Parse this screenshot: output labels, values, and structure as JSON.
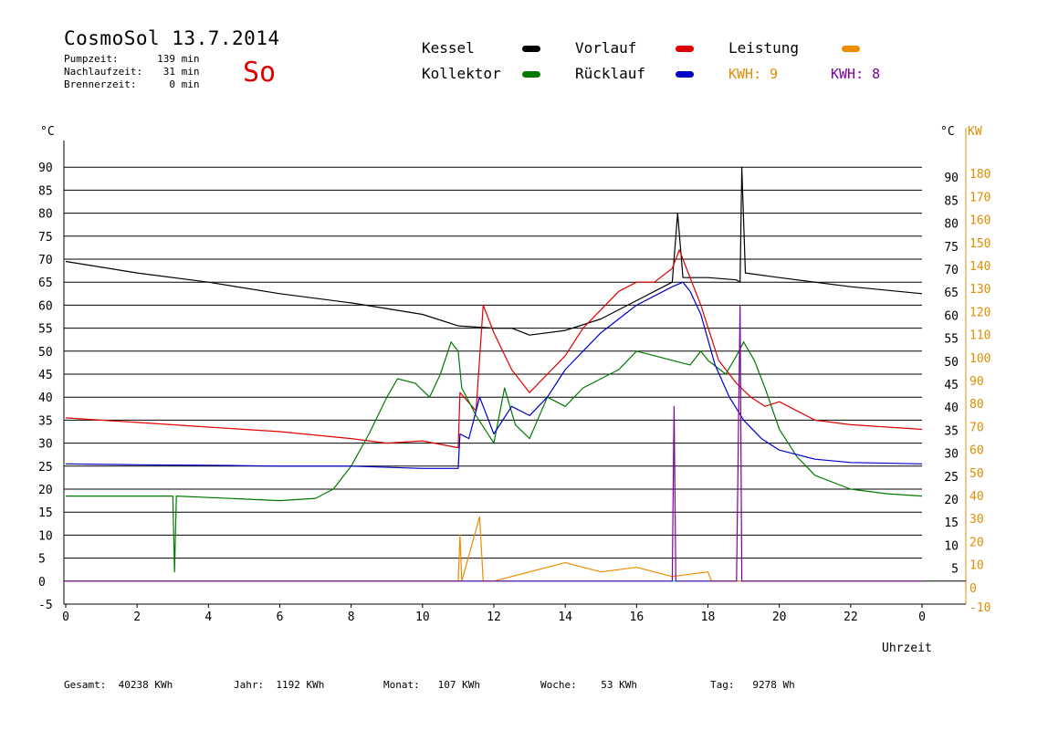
{
  "header": {
    "title": "CosmoSol 13.7.2014",
    "weekday": "So",
    "stats": [
      {
        "label": "Pumpzeit:",
        "value": "139",
        "unit": "min"
      },
      {
        "label": "Nachlaufzeit:",
        "value": "31",
        "unit": "min"
      },
      {
        "label": "Brennerzeit:",
        "value": "0",
        "unit": "min"
      }
    ]
  },
  "legend": {
    "kessel": "Kessel",
    "vorlauf": "Vorlauf",
    "leistung": "Leistung",
    "kollektor": "Kollektor",
    "ruecklauf": "Rücklauf",
    "kwh1": "KWH: 9",
    "kwh2": "KWH: 8"
  },
  "colors": {
    "kessel": "#000000",
    "vorlauf": "#e00000",
    "leistung": "#f08c00",
    "kollektor": "#007a00",
    "ruecklauf": "#0000c8",
    "kwh2": "#8000a0",
    "zero_line": "#00e0e0",
    "axis_right": "#e08c00"
  },
  "footer": [
    {
      "label": "Gesamt:",
      "value": "40238 KWh"
    },
    {
      "label": "Jahr:",
      "value": "1192 KWh"
    },
    {
      "label": "Monat:",
      "value": "107 KWh"
    },
    {
      "label": "Woche:",
      "value": "53 KWh"
    },
    {
      "label": "Tag:",
      "value": "9278 Wh"
    }
  ],
  "chart_data": {
    "type": "line",
    "xlabel": "Uhrzeit",
    "ylabel_left": "°C",
    "ylabel_right": "KW",
    "xlim": [
      0,
      24
    ],
    "ylim": [
      -5,
      95
    ],
    "ylim_right": [
      -10,
      190
    ],
    "x_ticks": [
      "0",
      "2",
      "4",
      "6",
      "8",
      "10",
      "12",
      "14",
      "16",
      "18",
      "20",
      "22",
      "0"
    ],
    "y_ticks_left": [
      "-5",
      "0",
      "5",
      "10",
      "15",
      "20",
      "25",
      "30",
      "35",
      "40",
      "45",
      "50",
      "55",
      "60",
      "65",
      "70",
      "75",
      "80",
      "85",
      "90"
    ],
    "y_ticks_right_temp": [
      "5",
      "10",
      "15",
      "20",
      "25",
      "30",
      "35",
      "40",
      "45",
      "50",
      "55",
      "60",
      "65",
      "70",
      "75",
      "80",
      "85",
      "90"
    ],
    "y_ticks_right_kw": [
      "-10",
      "0",
      "10",
      "20",
      "30",
      "40",
      "50",
      "60",
      "70",
      "80",
      "90",
      "100",
      "110",
      "120",
      "130",
      "140",
      "150",
      "160",
      "170",
      "180"
    ],
    "grid": true,
    "legend_position": "top",
    "series": [
      {
        "name": "Kessel",
        "points": [
          [
            0,
            69.5
          ],
          [
            2,
            67
          ],
          [
            4,
            65
          ],
          [
            6,
            62.5
          ],
          [
            8,
            60.5
          ],
          [
            10,
            58
          ],
          [
            11,
            55.5
          ],
          [
            12,
            55
          ],
          [
            12.5,
            55
          ],
          [
            13,
            53.5
          ],
          [
            14,
            54.5
          ],
          [
            15,
            57
          ],
          [
            16,
            61
          ],
          [
            17,
            65
          ],
          [
            17.15,
            80
          ],
          [
            17.3,
            66
          ],
          [
            18,
            66
          ],
          [
            18.8,
            65.5
          ],
          [
            18.9,
            65
          ],
          [
            18.95,
            90
          ],
          [
            19.05,
            67
          ],
          [
            20,
            66
          ],
          [
            22,
            64
          ],
          [
            24,
            62.5
          ]
        ]
      },
      {
        "name": "Vorlauf",
        "points": [
          [
            0,
            35.5
          ],
          [
            2,
            34.5
          ],
          [
            4,
            33.5
          ],
          [
            6,
            32.5
          ],
          [
            8,
            31
          ],
          [
            9,
            30
          ],
          [
            10,
            30.5
          ],
          [
            11,
            29
          ],
          [
            11.05,
            41
          ],
          [
            11.5,
            37
          ],
          [
            11.7,
            60
          ],
          [
            12,
            54
          ],
          [
            12.5,
            46
          ],
          [
            13,
            41
          ],
          [
            13.5,
            45
          ],
          [
            14,
            49
          ],
          [
            14.5,
            55
          ],
          [
            15,
            59
          ],
          [
            15.5,
            63
          ],
          [
            16,
            65
          ],
          [
            16.5,
            65
          ],
          [
            17,
            68
          ],
          [
            17.2,
            72
          ],
          [
            17.4,
            68
          ],
          [
            17.8,
            60
          ],
          [
            18.3,
            48
          ],
          [
            18.8,
            43
          ],
          [
            19.2,
            40
          ],
          [
            19.6,
            38
          ],
          [
            20,
            39
          ],
          [
            20.5,
            37
          ],
          [
            21,
            35
          ],
          [
            22,
            34
          ],
          [
            24,
            33
          ]
        ]
      },
      {
        "name": "Kollektor",
        "points": [
          [
            0,
            18.5
          ],
          [
            3,
            18.5
          ],
          [
            3.05,
            2
          ],
          [
            3.1,
            18.5
          ],
          [
            6,
            17.5
          ],
          [
            7,
            18
          ],
          [
            7.5,
            20
          ],
          [
            8,
            25
          ],
          [
            8.5,
            32
          ],
          [
            9,
            40
          ],
          [
            9.3,
            44
          ],
          [
            9.8,
            43
          ],
          [
            10.2,
            40
          ],
          [
            10.5,
            45
          ],
          [
            10.8,
            52
          ],
          [
            11,
            50
          ],
          [
            11.1,
            42
          ],
          [
            11.5,
            36
          ],
          [
            12,
            30
          ],
          [
            12.3,
            42
          ],
          [
            12.6,
            34
          ],
          [
            13,
            31
          ],
          [
            13.5,
            40
          ],
          [
            14,
            38
          ],
          [
            14.5,
            42
          ],
          [
            15,
            44
          ],
          [
            15.5,
            46
          ],
          [
            16,
            50
          ],
          [
            16.5,
            49
          ],
          [
            17,
            48
          ],
          [
            17.5,
            47
          ],
          [
            17.8,
            50
          ],
          [
            18,
            48
          ],
          [
            18.5,
            45
          ],
          [
            18.8,
            49
          ],
          [
            19,
            52
          ],
          [
            19.3,
            48
          ],
          [
            19.6,
            42
          ],
          [
            20,
            33
          ],
          [
            20.5,
            27
          ],
          [
            21,
            23
          ],
          [
            22,
            20
          ],
          [
            23,
            19
          ],
          [
            24,
            18.5
          ]
        ]
      },
      {
        "name": "Rücklauf",
        "points": [
          [
            0,
            25.5
          ],
          [
            2,
            25.3
          ],
          [
            4,
            25.2
          ],
          [
            6,
            25
          ],
          [
            8,
            25
          ],
          [
            10,
            24.5
          ],
          [
            11,
            24.5
          ],
          [
            11.05,
            32
          ],
          [
            11.3,
            31
          ],
          [
            11.6,
            40
          ],
          [
            12,
            32
          ],
          [
            12.5,
            38
          ],
          [
            13,
            36
          ],
          [
            13.5,
            40
          ],
          [
            14,
            46
          ],
          [
            14.5,
            50
          ],
          [
            15,
            54
          ],
          [
            15.5,
            57
          ],
          [
            16,
            60
          ],
          [
            16.5,
            62
          ],
          [
            17,
            64
          ],
          [
            17.3,
            65
          ],
          [
            17.5,
            63
          ],
          [
            17.8,
            58
          ],
          [
            18.2,
            47
          ],
          [
            18.6,
            40
          ],
          [
            19,
            35
          ],
          [
            19.5,
            31
          ],
          [
            20,
            28.5
          ],
          [
            21,
            26.5
          ],
          [
            22,
            25.8
          ],
          [
            24,
            25.5
          ]
        ]
      },
      {
        "name": "Leistung",
        "points": [
          [
            0,
            0
          ],
          [
            11,
            0
          ],
          [
            11.05,
            10
          ],
          [
            11.1,
            0
          ],
          [
            11.6,
            14
          ],
          [
            11.7,
            0
          ],
          [
            12,
            0
          ],
          [
            14,
            4
          ],
          [
            15,
            2
          ],
          [
            16,
            3
          ],
          [
            17,
            1
          ],
          [
            18,
            2
          ],
          [
            18.1,
            0
          ],
          [
            24,
            0
          ]
        ]
      },
      {
        "name": "KWH 2",
        "points": [
          [
            0,
            0
          ],
          [
            17,
            0
          ],
          [
            17.05,
            38
          ],
          [
            17.1,
            0
          ],
          [
            18.8,
            0
          ],
          [
            18.9,
            60
          ],
          [
            18.95,
            0
          ],
          [
            24,
            0
          ]
        ]
      }
    ]
  }
}
